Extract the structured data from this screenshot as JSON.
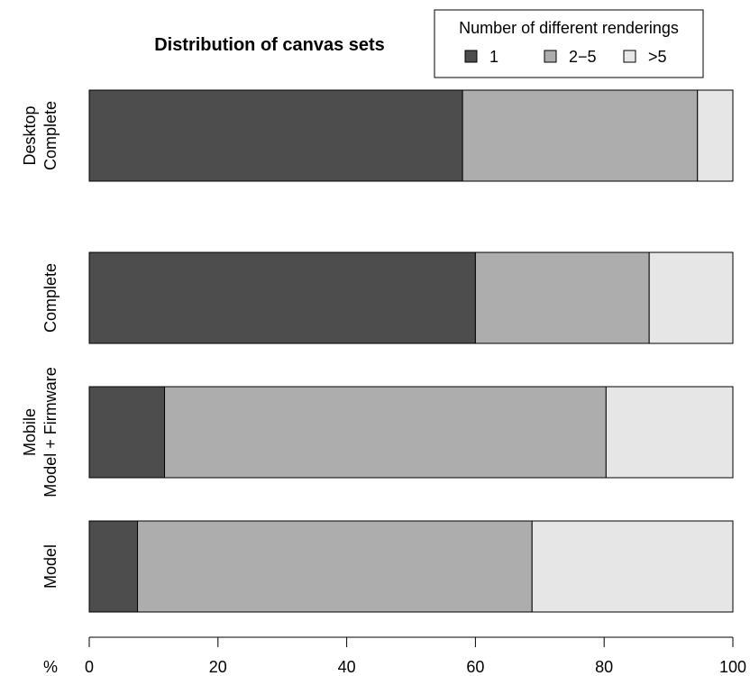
{
  "chart_data": {
    "type": "bar",
    "orientation": "horizontal",
    "stacked": true,
    "title": "Distribution of canvas sets",
    "xlabel": "%",
    "xlim": [
      0,
      100
    ],
    "xticks": [
      0,
      20,
      40,
      60,
      80,
      100
    ],
    "groups": [
      {
        "name": "Desktop",
        "categories": [
          "Complete"
        ]
      },
      {
        "name": "Mobile",
        "categories": [
          "Complete",
          "Model + Firmware",
          "Model"
        ]
      }
    ],
    "bars": [
      {
        "group": "Desktop",
        "label": "Complete",
        "values": [
          58,
          36.5,
          5.5
        ]
      },
      {
        "group": "Mobile",
        "label": "Complete",
        "values": [
          60,
          27,
          13
        ]
      },
      {
        "group": "Mobile",
        "label": "Model + Firmware",
        "values": [
          11.7,
          68.6,
          19.7
        ]
      },
      {
        "group": "Mobile",
        "label": "Model",
        "values": [
          7.5,
          61.3,
          31.2
        ]
      }
    ],
    "series": [
      {
        "name": "1",
        "color": "#4d4d4d"
      },
      {
        "name": "2−5",
        "color": "#adadad"
      },
      {
        "name": ">5",
        "color": "#e6e6e6"
      }
    ],
    "legend": {
      "title": "Number of different renderings",
      "position": "top-right"
    },
    "grid": false
  }
}
